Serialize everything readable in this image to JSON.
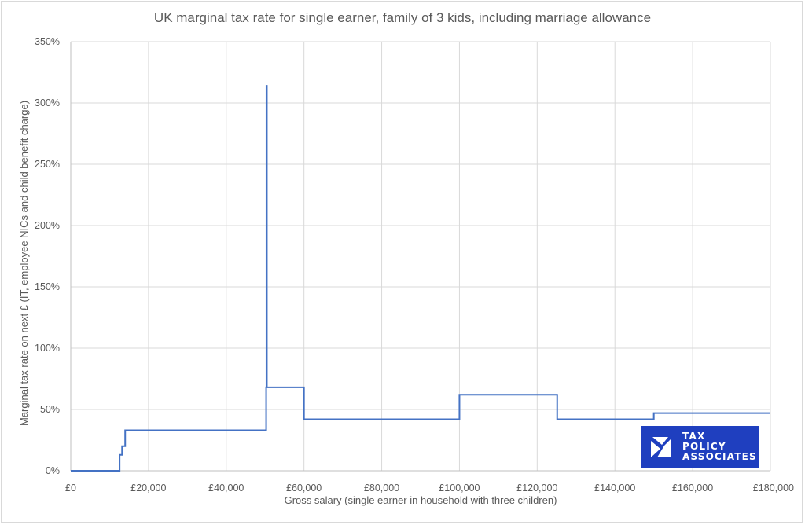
{
  "colors": {
    "series": "#4472c4",
    "logo_bg": "#1f3fbf",
    "text": "#595959",
    "grid": "#d9d9d9"
  },
  "logo": {
    "line1": "TAX",
    "line2": "POLICY",
    "line3": "ASSOCIATES",
    "icon": "tax-policy-associates-logo-icon"
  },
  "chart_data": {
    "type": "line",
    "title": "UK marginal tax rate for single earner, family of 3 kids, including marriage allowance",
    "xlabel": "Gross salary (single earner in household with three children)",
    "ylabel": "Marginal tax rate on next £ (IT, employee NICs and child benefit charge)",
    "xlim": [
      0,
      180000
    ],
    "ylim": [
      0,
      350
    ],
    "x_ticks": [
      0,
      20000,
      40000,
      60000,
      80000,
      100000,
      120000,
      140000,
      160000,
      180000
    ],
    "x_tick_labels": [
      "£0",
      "£20,000",
      "£40,000",
      "£60,000",
      "£80,000",
      "£100,000",
      "£120,000",
      "£140,000",
      "£160,000",
      "£180,000"
    ],
    "y_ticks": [
      0,
      50,
      100,
      150,
      200,
      250,
      300,
      350
    ],
    "y_tick_labels": [
      "0%",
      "50%",
      "100%",
      "150%",
      "200%",
      "250%",
      "300%",
      "350%"
    ],
    "grid": true,
    "legend": "none",
    "series": [
      {
        "x": [
          0,
          12570,
          12570,
          13200,
          13200,
          14000,
          14000,
          50270,
          50270,
          50350,
          50350,
          50450,
          50450,
          60000,
          60000,
          100000,
          100000,
          125140,
          125140,
          150000,
          150000,
          180000
        ],
        "y": [
          0,
          0,
          13,
          13,
          20,
          20,
          33,
          33,
          68,
          68,
          314,
          314,
          68,
          68,
          42,
          42,
          62,
          62,
          42,
          42,
          47,
          47
        ]
      }
    ]
  }
}
